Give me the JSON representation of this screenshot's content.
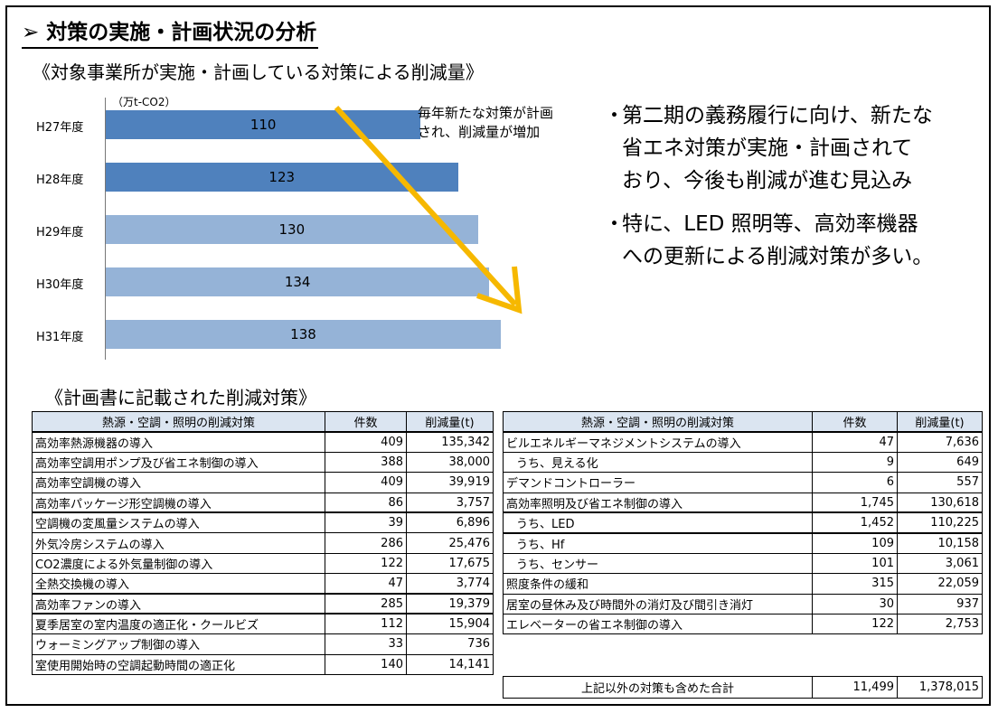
{
  "heading": "➢ 対策の実施・計画状況の分析",
  "chart_section_title": "《対象事業所が実施・計画している対策による削減量》",
  "table_section_title": "《計画書に記載された削減対策》",
  "chart_data": {
    "type": "bar",
    "orientation": "horizontal",
    "unit_label": "（万t-CO2）",
    "categories": [
      "H27年度",
      "H28年度",
      "H29年度",
      "H30年度",
      "H31年度"
    ],
    "values": [
      110,
      123,
      130,
      134,
      138
    ],
    "colors": [
      "#4f81bd",
      "#4f81bd",
      "#95b3d7",
      "#95b3d7",
      "#95b3d7"
    ],
    "grid": false,
    "annotation": "毎年新たな対策が計画され、削減量が増加",
    "annotation_arrow_color": "#f6b800"
  },
  "bullets": [
    {
      "dot": "・",
      "lines": [
        "第二期の義務履行に向け、新たな",
        "省エネ対策が実施・計画されて",
        "おり、今後も削減が進む見込み"
      ]
    },
    {
      "dot": "・",
      "lines": [
        "特に、LED 照明等、高効率機器",
        "への更新による削減対策が多い。"
      ]
    }
  ],
  "left_table": {
    "headers": [
      "熱源・空調・照明の削減対策",
      "件数",
      "削減量(t)"
    ],
    "rows": [
      {
        "name": "高効率熱源機器の導入",
        "count": "409",
        "amount": "135,342",
        "thick": true
      },
      {
        "name": "高効率空調用ポンプ及び省エネ制御の導入",
        "count": "388",
        "amount": "38,000"
      },
      {
        "name": "高効率空調機の導入",
        "count": "409",
        "amount": "39,919"
      },
      {
        "name": "高効率パッケージ形空調機の導入",
        "count": "86",
        "amount": "3,757"
      },
      {
        "name": "空調機の変風量システムの導入",
        "count": "39",
        "amount": "6,896",
        "thick": true
      },
      {
        "name": "外気冷房システムの導入",
        "count": "286",
        "amount": "25,476"
      },
      {
        "name": "CO2濃度による外気量制御の導入",
        "count": "122",
        "amount": "17,675"
      },
      {
        "name": "全熱交換機の導入",
        "count": "47",
        "amount": "3,774"
      },
      {
        "name": "高効率ファンの導入",
        "count": "285",
        "amount": "19,379",
        "thick": true
      },
      {
        "name": "夏季居室の室内温度の適正化・クールビズ",
        "count": "112",
        "amount": "15,904",
        "thick": true
      },
      {
        "name": "ウォーミングアップ制御の導入",
        "count": "33",
        "amount": "736"
      },
      {
        "name": "室使用開始時の空調起動時間の適正化",
        "count": "140",
        "amount": "14,141"
      }
    ]
  },
  "right_table": {
    "headers": [
      "熱源・空調・照明の削減対策",
      "件数",
      "削減量(t)"
    ],
    "rows": [
      {
        "name": "ビルエネルギーマネジメントシステムの導入",
        "count": "47",
        "amount": "7,636",
        "thick": true
      },
      {
        "name": "うち、見える化",
        "count": "9",
        "amount": "649",
        "indent": true
      },
      {
        "name": "デマンドコントローラー",
        "count": "6",
        "amount": "557"
      },
      {
        "name": "高効率照明及び省エネ制御の導入",
        "count": "1,745",
        "amount": "130,618"
      },
      {
        "name": "うち、LED",
        "count": "1,452",
        "amount": "110,225",
        "indent": true,
        "thick": true
      },
      {
        "name": "うち、Hf",
        "count": "109",
        "amount": "10,158",
        "indent": true,
        "thick": true
      },
      {
        "name": "うち、センサー",
        "count": "101",
        "amount": "3,061",
        "indent": true
      },
      {
        "name": "照度条件の緩和",
        "count": "315",
        "amount": "22,059"
      },
      {
        "name": "居室の昼休み及び時間外の消灯及び間引き消灯",
        "count": "30",
        "amount": "937"
      },
      {
        "name": "エレベーターの省エネ制御の導入",
        "count": "122",
        "amount": "2,753"
      }
    ],
    "total": {
      "name": "上記以外の対策も含めた合計",
      "count": "11,499",
      "amount": "1,378,015"
    }
  }
}
